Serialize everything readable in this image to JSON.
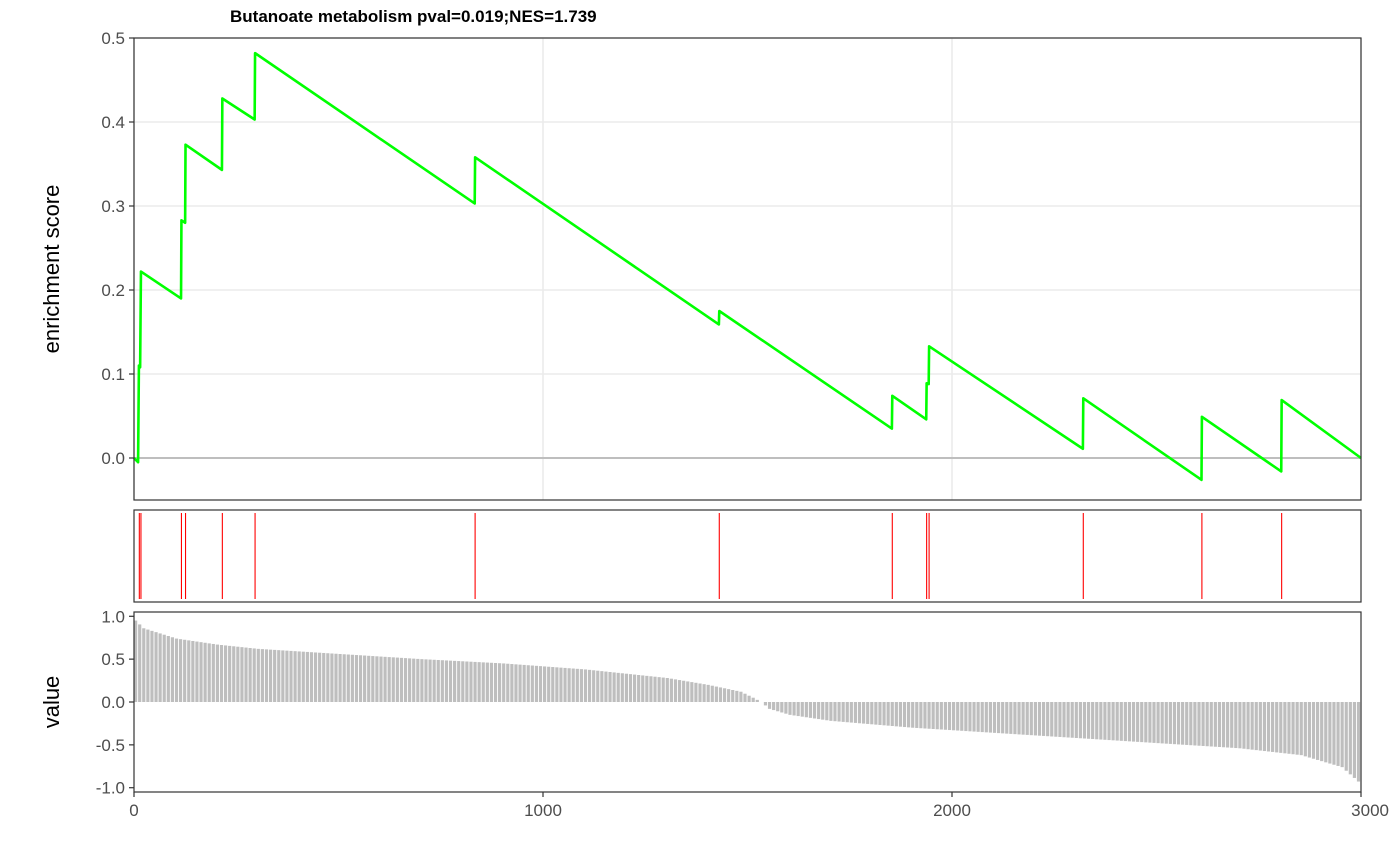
{
  "chart_data": {
    "type": "line",
    "title": "Butanoate metabolism pval=0.019;NES=1.739",
    "xlim": [
      0,
      3000
    ],
    "x_ticks": [
      "0",
      "1000",
      "2000",
      "3000"
    ],
    "grid": true,
    "legend": "none",
    "panels": {
      "enrichment": {
        "ylabel": "enrichment score",
        "ylim": [
          -0.05,
          0.5
        ],
        "y_ticks": [
          "0.0",
          "0.1",
          "0.2",
          "0.3",
          "0.4",
          "0.5"
        ],
        "color": "#00FF00",
        "points": [
          [
            0,
            0.0
          ],
          [
            10,
            -0.005
          ],
          [
            12,
            0.11
          ],
          [
            15,
            0.108
          ],
          [
            17,
            0.222
          ],
          [
            115,
            0.19
          ],
          [
            116,
            0.283
          ],
          [
            125,
            0.28
          ],
          [
            126,
            0.373
          ],
          [
            215,
            0.343
          ],
          [
            216,
            0.428
          ],
          [
            295,
            0.403
          ],
          [
            296,
            0.482
          ],
          [
            833,
            0.303
          ],
          [
            834,
            0.358
          ],
          [
            1430,
            0.159
          ],
          [
            1431,
            0.175
          ],
          [
            1853,
            0.035
          ],
          [
            1854,
            0.074
          ],
          [
            1937,
            0.046
          ],
          [
            1938,
            0.089
          ],
          [
            1943,
            0.088
          ],
          [
            1944,
            0.133
          ],
          [
            2320,
            0.011
          ],
          [
            2321,
            0.071
          ],
          [
            2610,
            -0.026
          ],
          [
            2611,
            0.049
          ],
          [
            2805,
            -0.016
          ],
          [
            2806,
            0.069
          ],
          [
            3000,
            0.0
          ]
        ]
      },
      "hits": {
        "color": "#FF0000",
        "positions": [
          13,
          17,
          116,
          126,
          216,
          296,
          834,
          1431,
          1854,
          1938,
          1944,
          2321,
          2611,
          2806
        ]
      },
      "ranked": {
        "ylabel": "value",
        "ylim": [
          -1.05,
          1.05
        ],
        "y_ticks": [
          "1.0",
          "0.5",
          "0.0",
          "-0.5",
          "-1.0"
        ],
        "color": "#BEBEBE",
        "n": 3000,
        "profile": [
          [
            0,
            0.95
          ],
          [
            20,
            0.86
          ],
          [
            60,
            0.8
          ],
          [
            100,
            0.74
          ],
          [
            200,
            0.67
          ],
          [
            300,
            0.62
          ],
          [
            500,
            0.56
          ],
          [
            700,
            0.5
          ],
          [
            900,
            0.45
          ],
          [
            1100,
            0.38
          ],
          [
            1300,
            0.28
          ],
          [
            1400,
            0.2
          ],
          [
            1480,
            0.12
          ],
          [
            1510,
            0.05
          ],
          [
            1530,
            0.0
          ],
          [
            1550,
            -0.08
          ],
          [
            1600,
            -0.15
          ],
          [
            1700,
            -0.22
          ],
          [
            1900,
            -0.3
          ],
          [
            2100,
            -0.36
          ],
          [
            2300,
            -0.42
          ],
          [
            2500,
            -0.48
          ],
          [
            2700,
            -0.54
          ],
          [
            2850,
            -0.62
          ],
          [
            2950,
            -0.76
          ],
          [
            3000,
            -0.97
          ]
        ]
      }
    }
  }
}
